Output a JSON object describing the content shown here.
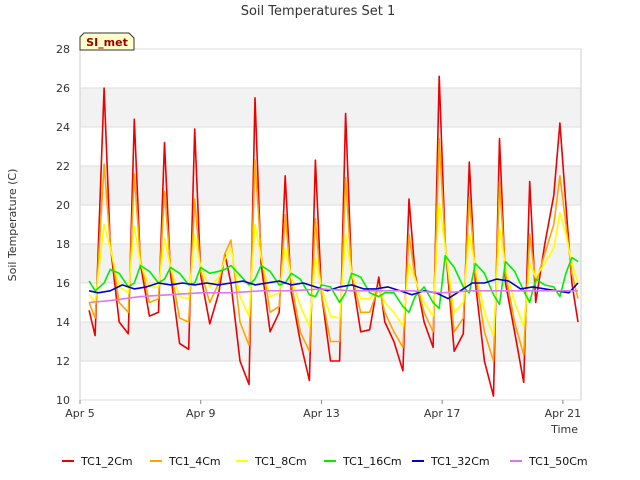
{
  "chart_data": {
    "type": "line",
    "title": "Soil Temperatures Set 1",
    "xlabel": "Time",
    "ylabel": "Soil Temperature (C)",
    "badge": "SI_met",
    "ylim": [
      10,
      28
    ],
    "yticks": [
      10,
      12,
      14,
      16,
      18,
      20,
      22,
      24,
      26,
      28
    ],
    "xlim": [
      5,
      21.6
    ],
    "xticks": [
      {
        "value": 5,
        "label": "Apr 5"
      },
      {
        "value": 9,
        "label": "Apr 9"
      },
      {
        "value": 13,
        "label": "Apr 13"
      },
      {
        "value": 17,
        "label": "Apr 17"
      },
      {
        "value": 21,
        "label": "Apr 21"
      }
    ],
    "grid": true,
    "legend_position": "bottom",
    "series": [
      {
        "name": "TC1_2Cm",
        "color": "#ee0000",
        "x": [
          5.3,
          5.5,
          5.8,
          6.0,
          6.3,
          6.6,
          6.8,
          7.0,
          7.3,
          7.6,
          7.8,
          8.0,
          8.3,
          8.6,
          8.8,
          9.0,
          9.3,
          9.6,
          9.8,
          10.0,
          10.3,
          10.6,
          10.8,
          11.0,
          11.3,
          11.6,
          11.8,
          12.0,
          12.3,
          12.6,
          12.8,
          13.0,
          13.3,
          13.6,
          13.8,
          14.0,
          14.3,
          14.6,
          14.9,
          15.1,
          15.4,
          15.7,
          15.9,
          16.1,
          16.4,
          16.7,
          16.9,
          17.1,
          17.4,
          17.7,
          17.9,
          18.1,
          18.4,
          18.7,
          18.9,
          19.1,
          19.4,
          19.7,
          19.9,
          20.1,
          20.4,
          20.7,
          20.9,
          21.1,
          21.3,
          21.5
        ],
        "y": [
          14.6,
          13.3,
          26.0,
          18.0,
          14.0,
          13.4,
          24.4,
          17.0,
          14.3,
          14.5,
          23.2,
          16.5,
          12.9,
          12.6,
          23.9,
          16.4,
          13.9,
          15.5,
          17.5,
          16.0,
          12.0,
          10.8,
          25.5,
          17.0,
          13.5,
          14.5,
          21.5,
          15.5,
          13.0,
          11.0,
          22.3,
          15.5,
          12.0,
          12.0,
          24.7,
          16.5,
          13.5,
          13.6,
          16.3,
          14.0,
          13.0,
          11.5,
          20.3,
          16.5,
          14.0,
          12.7,
          26.6,
          18.0,
          12.5,
          13.4,
          22.2,
          16.0,
          12.0,
          10.2,
          23.4,
          16.0,
          13.5,
          10.9,
          21.2,
          15.0,
          18.0,
          20.5,
          24.2,
          20.0,
          16.0,
          14.0
        ]
      },
      {
        "name": "TC1_4Cm",
        "color": "#ffa500",
        "x": [
          5.3,
          5.5,
          5.8,
          6.0,
          6.3,
          6.6,
          6.8,
          7.0,
          7.3,
          7.6,
          7.8,
          8.0,
          8.3,
          8.6,
          8.8,
          9.0,
          9.3,
          9.6,
          9.8,
          10.0,
          10.3,
          10.6,
          10.8,
          11.0,
          11.3,
          11.6,
          11.8,
          12.0,
          12.3,
          12.6,
          12.8,
          13.0,
          13.3,
          13.6,
          13.8,
          14.0,
          14.3,
          14.6,
          14.9,
          15.1,
          15.4,
          15.7,
          15.9,
          16.1,
          16.4,
          16.7,
          16.9,
          17.1,
          17.4,
          17.7,
          17.9,
          18.1,
          18.4,
          18.7,
          18.9,
          19.1,
          19.4,
          19.7,
          19.9,
          20.1,
          20.4,
          20.7,
          20.9,
          21.1,
          21.3,
          21.5
        ],
        "y": [
          15.0,
          14.2,
          22.1,
          18.0,
          15.0,
          14.5,
          21.6,
          17.2,
          15.0,
          15.2,
          20.7,
          16.8,
          14.2,
          14.0,
          20.3,
          16.6,
          15.0,
          16.0,
          17.5,
          18.2,
          14.0,
          12.8,
          22.3,
          17.5,
          14.5,
          14.8,
          19.5,
          16.0,
          13.5,
          12.5,
          19.3,
          15.5,
          13.0,
          13.0,
          21.4,
          16.5,
          14.5,
          14.5,
          15.8,
          14.5,
          13.5,
          12.7,
          18.5,
          16.3,
          14.5,
          13.5,
          23.4,
          18.0,
          13.5,
          14.2,
          20.4,
          16.5,
          13.5,
          12.0,
          21.2,
          16.5,
          14.0,
          12.3,
          18.5,
          16.0,
          17.5,
          19.0,
          21.5,
          19.0,
          16.5,
          15.2
        ]
      },
      {
        "name": "TC1_8Cm",
        "color": "#ffff00",
        "x": [
          5.3,
          5.5,
          5.8,
          6.0,
          6.3,
          6.6,
          6.8,
          7.0,
          7.3,
          7.6,
          7.8,
          8.0,
          8.3,
          8.6,
          8.8,
          9.0,
          9.3,
          9.6,
          9.8,
          10.0,
          10.3,
          10.6,
          10.8,
          11.0,
          11.3,
          11.6,
          11.8,
          12.0,
          12.3,
          12.6,
          12.8,
          13.0,
          13.3,
          13.6,
          13.8,
          14.0,
          14.3,
          14.6,
          14.9,
          15.1,
          15.4,
          15.7,
          15.9,
          16.1,
          16.4,
          16.7,
          16.9,
          17.1,
          17.4,
          17.7,
          17.9,
          18.1,
          18.4,
          18.7,
          18.9,
          19.1,
          19.4,
          19.7,
          19.9,
          20.1,
          20.4,
          20.7,
          20.9,
          21.1,
          21.3,
          21.5
        ],
        "y": [
          15.4,
          15.0,
          19.0,
          17.8,
          15.8,
          15.5,
          18.9,
          17.0,
          15.8,
          15.8,
          18.3,
          16.8,
          15.3,
          15.2,
          18.5,
          16.8,
          15.8,
          16.3,
          17.2,
          17.8,
          15.3,
          14.3,
          19.0,
          17.3,
          15.3,
          15.5,
          17.8,
          16.3,
          14.8,
          13.8,
          17.3,
          15.8,
          14.3,
          14.2,
          18.5,
          16.5,
          15.2,
          15.2,
          15.8,
          15.0,
          14.5,
          13.8,
          17.0,
          16.2,
          15.0,
          14.3,
          20.1,
          17.8,
          14.5,
          15.0,
          18.5,
          16.8,
          14.5,
          13.3,
          18.8,
          16.8,
          15.0,
          13.8,
          17.0,
          16.3,
          17.0,
          17.8,
          19.6,
          18.5,
          17.0,
          16.0
        ]
      },
      {
        "name": "TC1_16Cm",
        "color": "#00ee00",
        "x": [
          5.3,
          5.5,
          5.8,
          6.0,
          6.3,
          6.6,
          6.8,
          7.0,
          7.3,
          7.6,
          7.8,
          8.0,
          8.3,
          8.6,
          8.8,
          9.0,
          9.3,
          9.6,
          9.8,
          10.0,
          10.3,
          10.6,
          10.8,
          11.0,
          11.3,
          11.6,
          11.8,
          12.0,
          12.3,
          12.6,
          12.8,
          13.0,
          13.3,
          13.6,
          13.8,
          14.0,
          14.3,
          14.6,
          14.9,
          15.1,
          15.4,
          15.7,
          15.9,
          16.1,
          16.4,
          16.7,
          16.9,
          17.1,
          17.4,
          17.7,
          17.9,
          18.1,
          18.4,
          18.7,
          18.9,
          19.1,
          19.4,
          19.7,
          19.9,
          20.1,
          20.4,
          20.7,
          20.9,
          21.1,
          21.3,
          21.5
        ],
        "y": [
          16.1,
          15.6,
          16.0,
          16.7,
          16.5,
          15.8,
          16.0,
          16.9,
          16.6,
          16.0,
          16.2,
          16.8,
          16.5,
          15.9,
          16.0,
          16.8,
          16.5,
          16.6,
          16.7,
          16.9,
          16.4,
          15.9,
          16.2,
          16.9,
          16.6,
          15.9,
          16.0,
          16.5,
          16.2,
          15.4,
          15.3,
          15.9,
          15.8,
          15.0,
          15.5,
          16.5,
          16.3,
          15.5,
          15.3,
          15.5,
          15.5,
          14.8,
          14.5,
          15.3,
          15.8,
          15.0,
          14.7,
          17.4,
          16.8,
          15.8,
          15.5,
          17.0,
          16.5,
          15.4,
          14.9,
          17.1,
          16.6,
          15.6,
          15.0,
          16.2,
          15.9,
          15.8,
          15.3,
          16.5,
          17.3,
          17.1
        ]
      },
      {
        "name": "TC1_32Cm",
        "color": "#0000cc",
        "x": [
          5.3,
          5.6,
          6.0,
          6.4,
          6.8,
          7.2,
          7.6,
          8.0,
          8.4,
          8.8,
          9.2,
          9.6,
          10.0,
          10.4,
          10.8,
          11.2,
          11.6,
          12.0,
          12.4,
          12.8,
          13.2,
          13.6,
          14.0,
          14.4,
          14.8,
          15.2,
          15.6,
          16.0,
          16.4,
          16.8,
          17.2,
          17.6,
          18.0,
          18.4,
          18.8,
          19.2,
          19.6,
          20.0,
          20.4,
          20.8,
          21.2,
          21.5
        ],
        "y": [
          15.6,
          15.5,
          15.6,
          15.9,
          15.7,
          15.8,
          16.0,
          15.9,
          16.0,
          15.9,
          16.0,
          15.9,
          16.0,
          16.1,
          15.9,
          16.0,
          16.1,
          15.9,
          16.0,
          15.8,
          15.6,
          15.8,
          15.9,
          15.7,
          15.7,
          15.8,
          15.6,
          15.4,
          15.6,
          15.5,
          15.2,
          15.6,
          16.0,
          16.0,
          16.2,
          16.1,
          15.7,
          15.8,
          15.7,
          15.6,
          15.5,
          16.0
        ]
      },
      {
        "name": "TC1_50Cm",
        "color": "#dd77ee",
        "x": [
          5.3,
          6.0,
          7.0,
          8.0,
          9.0,
          10.0,
          11.0,
          12.0,
          13.0,
          14.0,
          15.0,
          16.0,
          17.0,
          18.0,
          19.0,
          20.0,
          21.0,
          21.5
        ],
        "y": [
          15.0,
          15.1,
          15.3,
          15.4,
          15.5,
          15.5,
          15.6,
          15.6,
          15.7,
          15.6,
          15.6,
          15.6,
          15.5,
          15.6,
          15.6,
          15.6,
          15.6,
          15.6
        ]
      }
    ]
  }
}
